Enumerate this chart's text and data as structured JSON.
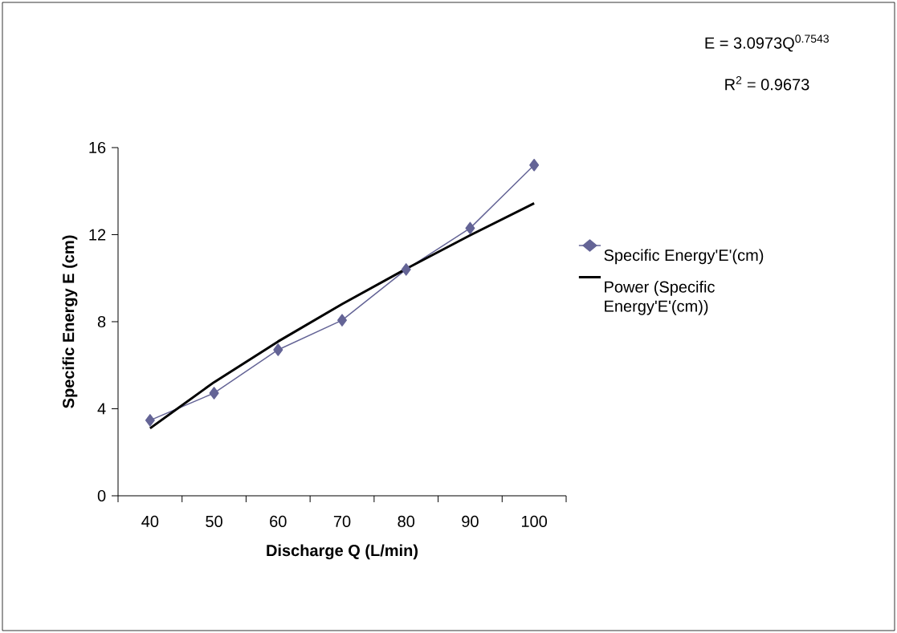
{
  "chart_data": {
    "type": "line",
    "xlabel": "Discharge Q (L/min)",
    "ylabel": "Specific Energy E (cm)",
    "categories": [
      "40",
      "50",
      "60",
      "70",
      "80",
      "90",
      "100"
    ],
    "series": [
      {
        "name": "Specific Energy'E'(cm)",
        "color": "#646496",
        "marker": "diamond",
        "values": [
          3.47,
          4.72,
          6.71,
          8.07,
          10.4,
          12.3,
          15.2
        ]
      },
      {
        "name": "Power (Specific Energy'E'(cm))",
        "color": "#000000",
        "marker": "none",
        "values": [
          3.1,
          5.22,
          7.09,
          8.81,
          10.43,
          11.97,
          13.44
        ]
      }
    ],
    "ylim": [
      0,
      16
    ],
    "yticks": [
      0,
      4,
      8,
      12,
      16
    ],
    "legend": "right",
    "grid": false,
    "annotations": [
      "E = 3.0973Q$^{0.7543}$",
      "R$^{2}$ = 0.9673"
    ]
  }
}
